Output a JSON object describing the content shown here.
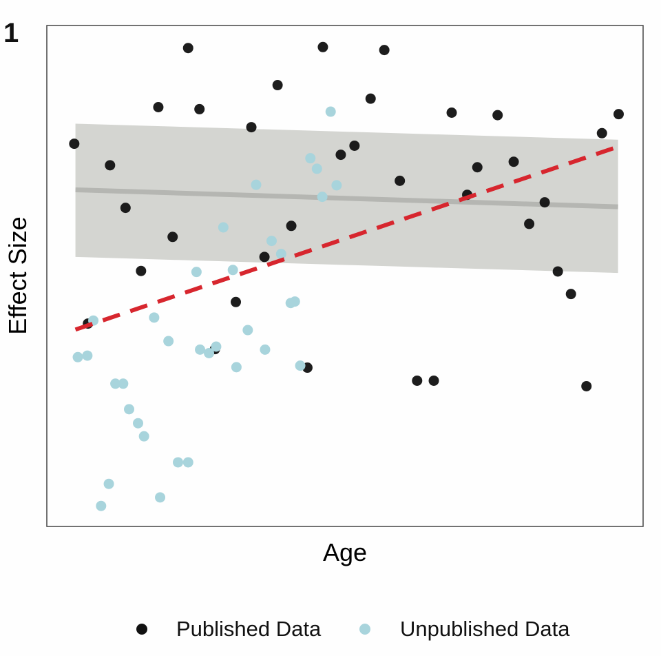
{
  "panel_label": "1",
  "chart_data": {
    "type": "scatter",
    "title": "",
    "xlabel": "Age",
    "ylabel": "Effect Size",
    "xlim": [
      0,
      100
    ],
    "ylim": [
      0,
      100
    ],
    "x_ticks_shown": false,
    "y_ticks_shown": false,
    "grid": false,
    "legend": "bottom",
    "series": [
      {
        "name": "Published Data",
        "color": "#111111",
        "points": [
          [
            4.6,
            76.4
          ],
          [
            10.6,
            72.1
          ],
          [
            13.2,
            63.6
          ],
          [
            15.8,
            51.0
          ],
          [
            18.7,
            83.7
          ],
          [
            21.1,
            57.8
          ],
          [
            23.7,
            95.5
          ],
          [
            25.6,
            83.3
          ],
          [
            28.2,
            35.4
          ],
          [
            31.7,
            44.8
          ],
          [
            34.3,
            79.7
          ],
          [
            36.5,
            53.8
          ],
          [
            38.7,
            88.1
          ],
          [
            41.0,
            60.0
          ],
          [
            43.7,
            31.7
          ],
          [
            46.3,
            95.7
          ],
          [
            49.3,
            74.2
          ],
          [
            51.6,
            76.0
          ],
          [
            54.3,
            85.4
          ],
          [
            56.6,
            95.1
          ],
          [
            59.2,
            69.0
          ],
          [
            62.1,
            29.1
          ],
          [
            64.9,
            29.1
          ],
          [
            67.9,
            82.6
          ],
          [
            70.5,
            66.2
          ],
          [
            72.2,
            71.7
          ],
          [
            75.6,
            82.1
          ],
          [
            78.3,
            72.8
          ],
          [
            80.9,
            60.4
          ],
          [
            83.5,
            64.7
          ],
          [
            85.7,
            50.9
          ],
          [
            87.9,
            46.4
          ],
          [
            90.5,
            28.0
          ],
          [
            93.1,
            78.5
          ],
          [
            95.9,
            82.3
          ],
          [
            6.9,
            40.5
          ]
        ]
      },
      {
        "name": "Unpublished Data",
        "color": "#a8d4dc",
        "points": [
          [
            5.2,
            33.8
          ],
          [
            6.8,
            34.1
          ],
          [
            7.8,
            41.1
          ],
          [
            9.1,
            4.1
          ],
          [
            10.4,
            8.5
          ],
          [
            11.5,
            28.5
          ],
          [
            12.8,
            28.5
          ],
          [
            13.8,
            23.4
          ],
          [
            15.3,
            20.6
          ],
          [
            16.3,
            18.0
          ],
          [
            18.0,
            41.7
          ],
          [
            19.0,
            5.8
          ],
          [
            20.4,
            37.0
          ],
          [
            22.0,
            12.8
          ],
          [
            23.7,
            12.8
          ],
          [
            25.1,
            50.8
          ],
          [
            25.7,
            35.3
          ],
          [
            27.2,
            34.6
          ],
          [
            28.4,
            35.9
          ],
          [
            29.6,
            59.7
          ],
          [
            31.2,
            51.2
          ],
          [
            31.8,
            31.8
          ],
          [
            33.7,
            39.2
          ],
          [
            35.1,
            68.2
          ],
          [
            36.6,
            35.3
          ],
          [
            37.7,
            57.0
          ],
          [
            39.3,
            54.4
          ],
          [
            40.9,
            44.6
          ],
          [
            41.6,
            44.9
          ],
          [
            42.5,
            32.1
          ],
          [
            44.2,
            73.5
          ],
          [
            45.3,
            71.4
          ],
          [
            46.2,
            65.8
          ],
          [
            47.6,
            82.8
          ],
          [
            48.6,
            68.1
          ]
        ]
      }
    ],
    "trend_lines": [
      {
        "name": "smooth",
        "color": "#b5b6b2",
        "style": "solid",
        "x": [
          4.8,
          95.8
        ],
        "y": [
          67.2,
          63.8
        ],
        "ci_upper": [
          80.4,
          77.2
        ],
        "ci_upper_mid": [
          50.0,
          71.6
        ],
        "ci_lower": [
          53.8,
          50.6
        ],
        "ci_lower_mid": [
          50.0,
          58.5
        ]
      },
      {
        "name": "linear",
        "color": "#d7262e",
        "style": "dashed",
        "x": [
          4.8,
          95.8
        ],
        "y": [
          39.3,
          75.8
        ]
      }
    ]
  },
  "legend": {
    "items": [
      {
        "label": "Published Data",
        "color": "#111111"
      },
      {
        "label": "Unpublished Data",
        "color": "#a8d4dc"
      }
    ]
  }
}
